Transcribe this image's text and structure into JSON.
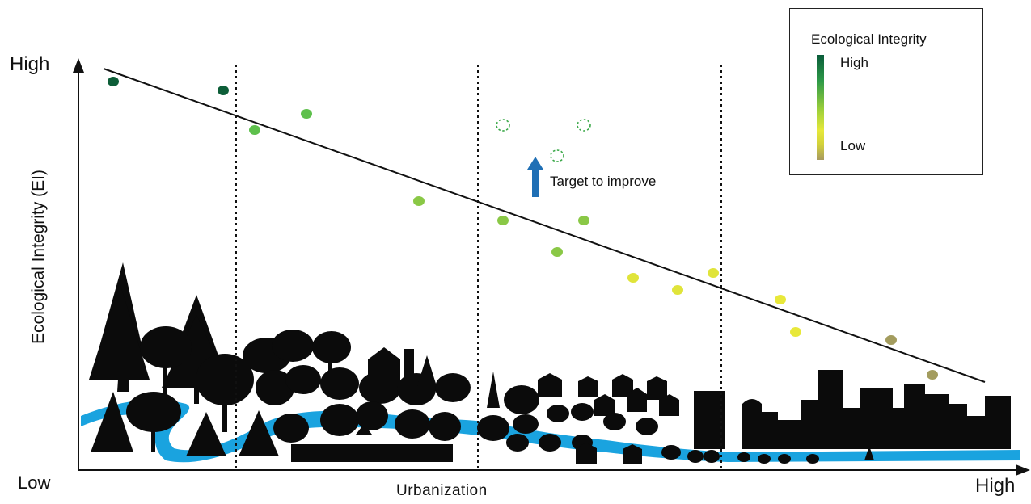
{
  "diagram": {
    "y_axis_label": "Ecological Integrity (EI)",
    "y_axis_high": "High",
    "y_axis_low": "Low",
    "x_axis_label": "Urbanization",
    "x_axis_high": "High",
    "annotation": "Target to improve",
    "legend": {
      "title": "Ecological Integrity",
      "high": "High",
      "low": "Low"
    },
    "colors": {
      "dark_green": "#0d5e38",
      "green": "#6cc24a",
      "yellow_green": "#b8d838",
      "yellow": "#e5e83c",
      "olive": "#a39c5e",
      "river": "#1aa3df",
      "arrow": "#1f6fb5"
    },
    "zones": [
      "forest",
      "rural",
      "suburban",
      "urban"
    ]
  }
}
